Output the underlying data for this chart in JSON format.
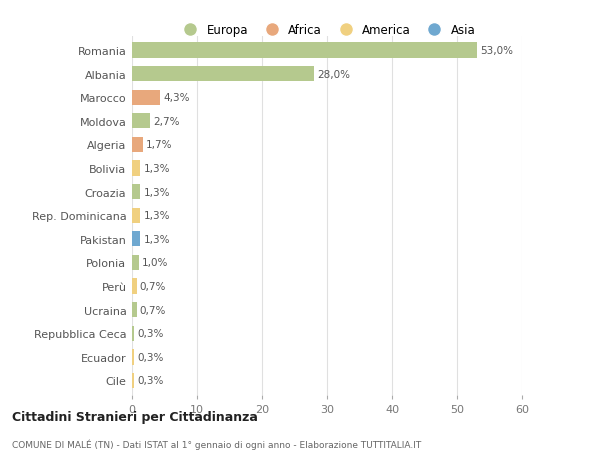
{
  "countries": [
    "Romania",
    "Albania",
    "Marocco",
    "Moldova",
    "Algeria",
    "Bolivia",
    "Croazia",
    "Rep. Dominicana",
    "Pakistan",
    "Polonia",
    "Perù",
    "Ucraina",
    "Repubblica Ceca",
    "Ecuador",
    "Cile"
  ],
  "values": [
    53.0,
    28.0,
    4.3,
    2.7,
    1.7,
    1.3,
    1.3,
    1.3,
    1.3,
    1.0,
    0.7,
    0.7,
    0.3,
    0.3,
    0.3
  ],
  "labels": [
    "53,0%",
    "28,0%",
    "4,3%",
    "2,7%",
    "1,7%",
    "1,3%",
    "1,3%",
    "1,3%",
    "1,3%",
    "1,0%",
    "0,7%",
    "0,7%",
    "0,3%",
    "0,3%",
    "0,3%"
  ],
  "continents": [
    "Europa",
    "Europa",
    "Africa",
    "Europa",
    "Africa",
    "America",
    "Europa",
    "America",
    "Asia",
    "Europa",
    "America",
    "Europa",
    "Europa",
    "America",
    "America"
  ],
  "colors": {
    "Europa": "#b5c98e",
    "Africa": "#e8a87c",
    "America": "#f0d080",
    "Asia": "#6fa8d0"
  },
  "title1": "Cittadini Stranieri per Cittadinanza",
  "title2": "COMUNE DI MALÉ (TN) - Dati ISTAT al 1° gennaio di ogni anno - Elaborazione TUTTITALIA.IT",
  "xlim": [
    0,
    60
  ],
  "xticks": [
    0,
    10,
    20,
    30,
    40,
    50,
    60
  ],
  "background_color": "#ffffff",
  "grid_color": "#e0e0e0",
  "bar_height": 0.65
}
